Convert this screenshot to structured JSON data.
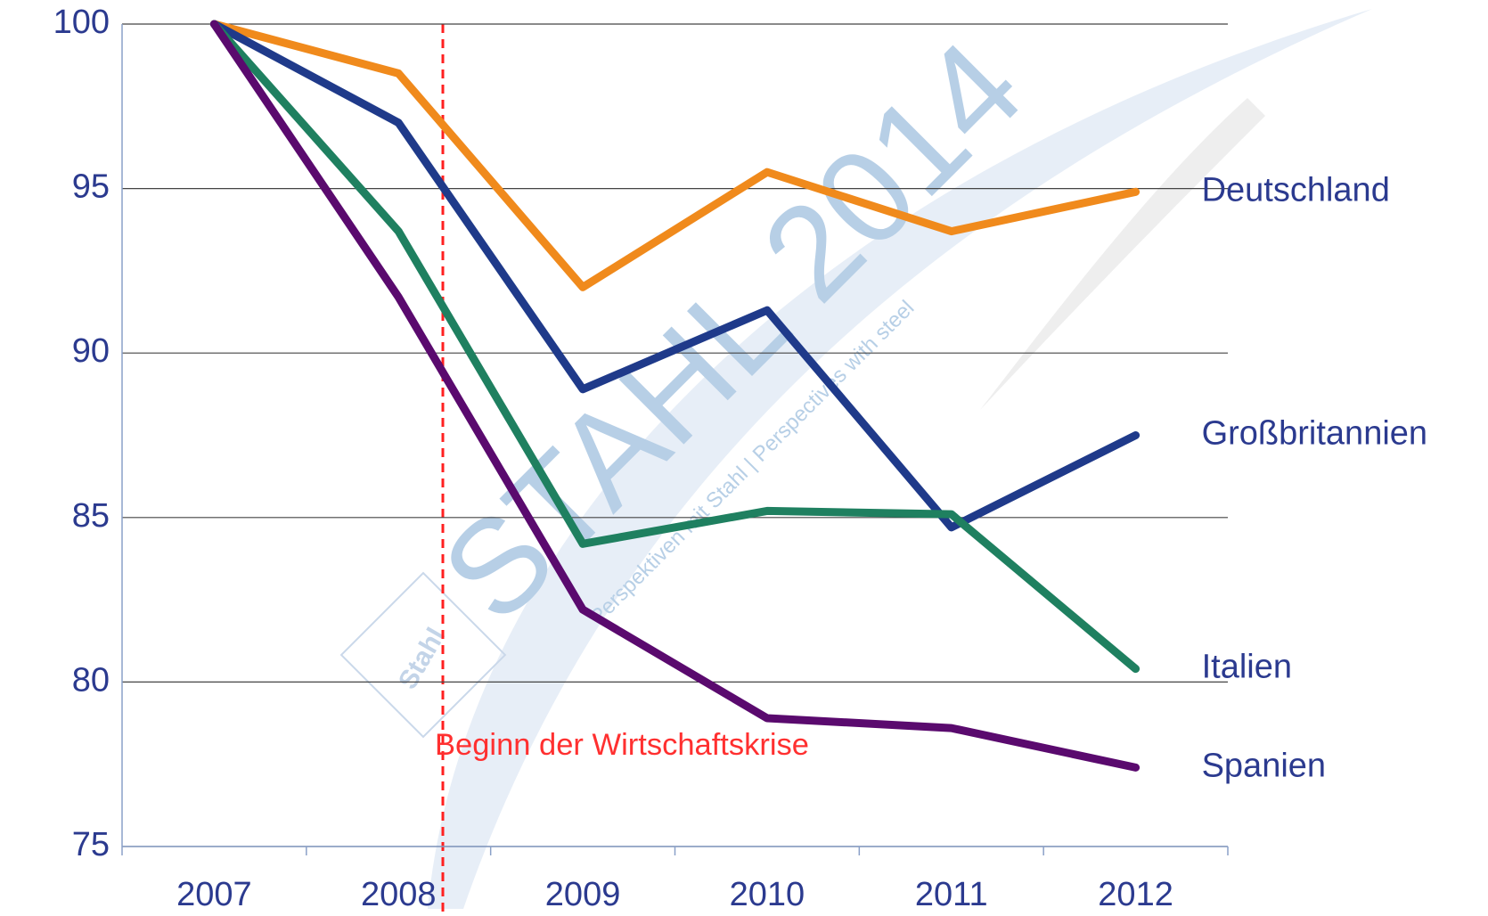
{
  "chart_data": {
    "type": "line",
    "categories": [
      "2007",
      "2008",
      "2009",
      "2010",
      "2011",
      "2012"
    ],
    "series": [
      {
        "name": "Deutschland",
        "color": "#f08a1c",
        "values": [
          100,
          98.5,
          92,
          95.5,
          93.7,
          94.9
        ]
      },
      {
        "name": "Großbritannien",
        "color": "#1f3a8a",
        "values": [
          100,
          97,
          88.9,
          91.3,
          84.7,
          87.5
        ]
      },
      {
        "name": "Italien",
        "color": "#1f8060",
        "values": [
          100,
          93.7,
          84.2,
          85.2,
          85.1,
          80.4
        ]
      },
      {
        "name": "Spanien",
        "color": "#5a0a6e",
        "values": [
          100,
          91.7,
          82.2,
          78.9,
          78.6,
          77.4
        ]
      }
    ],
    "ylim": [
      75,
      100
    ],
    "yticks": [
      75,
      80,
      85,
      90,
      95,
      100
    ],
    "grid": true,
    "annotation": "Beginn der Wirtschaftskrise",
    "watermark": {
      "title": "STAHL 2014",
      "subtitle": "Perspektiven mit Stahl | Perspectives with steel",
      "logo": "Stahl"
    }
  }
}
